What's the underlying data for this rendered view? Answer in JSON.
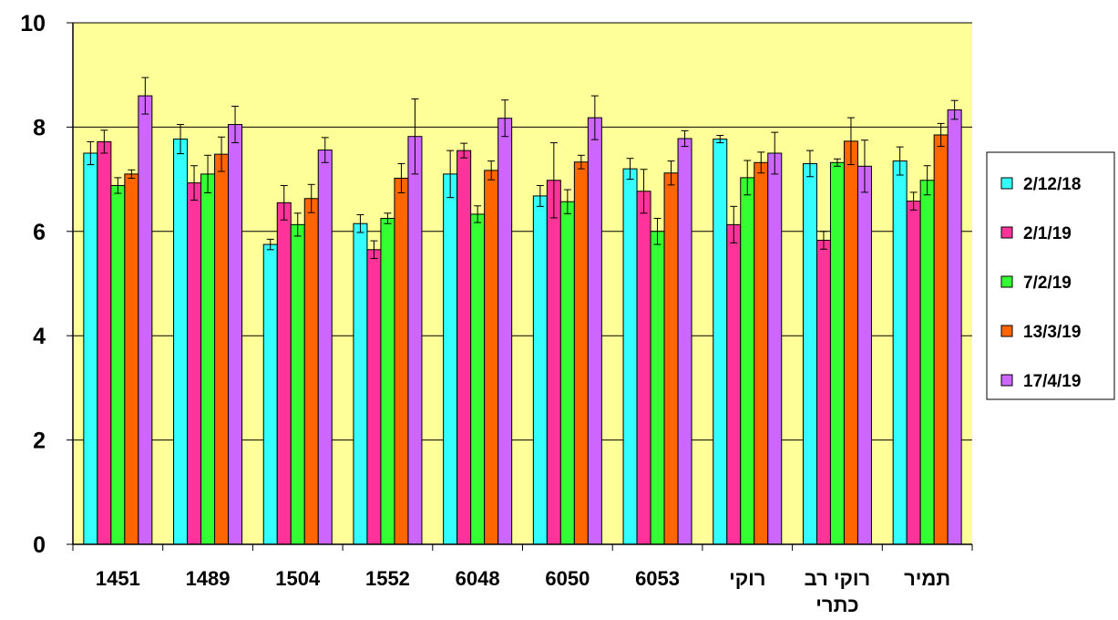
{
  "chart_data": {
    "type": "bar",
    "title": "",
    "xlabel": "",
    "ylabel": "",
    "ylim": [
      0,
      10
    ],
    "yticks": [
      0,
      2,
      4,
      6,
      8,
      10
    ],
    "grid": true,
    "legend_position": "right",
    "plot_background": "#FFFF99",
    "categories": [
      "1451",
      "1489",
      "1504",
      "1552",
      "6048",
      "6050",
      "6053",
      "רוקי",
      "רוקי רב כתרי",
      "תמיר"
    ],
    "series": [
      {
        "name": "2/12/18",
        "color": "#33FFFF",
        "values": [
          7.5,
          7.77,
          5.75,
          6.15,
          7.1,
          6.68,
          7.2,
          7.77,
          7.3,
          7.35
        ],
        "errors": [
          0.22,
          0.28,
          0.1,
          0.17,
          0.45,
          0.2,
          0.2,
          0.07,
          0.25,
          0.27
        ]
      },
      {
        "name": "2/1/19",
        "color": "#FF3399",
        "values": [
          7.72,
          6.93,
          6.55,
          5.65,
          7.55,
          6.98,
          6.77,
          6.13,
          5.83,
          6.58
        ]
      },
      {
        "name": "7/2/19",
        "color": "#33FF33",
        "values": [
          6.88,
          7.1,
          6.13,
          6.25,
          6.33,
          6.57,
          6.0,
          7.03,
          7.32,
          6.98
        ]
      },
      {
        "name": "13/3/19",
        "color": "#FF6600",
        "values": [
          7.1,
          7.48,
          6.63,
          7.02,
          7.17,
          7.33,
          7.12,
          7.32,
          7.73,
          7.85
        ]
      },
      {
        "name": "17/4/19",
        "color": "#CC66FF",
        "values": [
          8.6,
          8.05,
          7.56,
          7.82,
          8.17,
          8.18,
          7.78,
          7.5,
          7.25,
          8.33
        ]
      }
    ],
    "error_bars": [
      [
        0.22,
        0.28,
        0.1,
        0.17,
        0.45,
        0.2,
        0.2,
        0.07,
        0.25,
        0.27
      ],
      [
        0.22,
        0.33,
        0.33,
        0.17,
        0.14,
        0.72,
        0.42,
        0.35,
        0.17,
        0.17
      ],
      [
        0.15,
        0.36,
        0.22,
        0.1,
        0.16,
        0.23,
        0.25,
        0.33,
        0.07,
        0.28
      ],
      [
        0.08,
        0.33,
        0.27,
        0.28,
        0.18,
        0.13,
        0.23,
        0.2,
        0.45,
        0.22
      ],
      [
        0.35,
        0.35,
        0.24,
        0.72,
        0.35,
        0.42,
        0.15,
        0.4,
        0.5,
        0.18
      ]
    ]
  }
}
